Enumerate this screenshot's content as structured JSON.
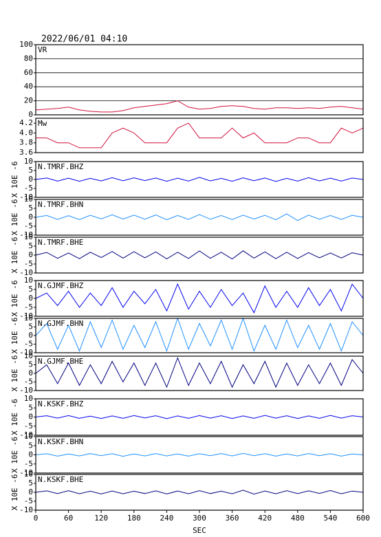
{
  "header": {
    "title": "2022/06/01 04:10"
  },
  "chart_data": [
    {
      "type": "line",
      "title": "VR",
      "xlim": [
        0,
        600
      ],
      "ylim": [
        0,
        100
      ],
      "yticks": [
        0,
        20,
        40,
        60,
        80,
        100
      ],
      "grid": true,
      "series": [
        {
          "color": "#d0103a",
          "x": [
            0,
            20,
            40,
            60,
            80,
            100,
            120,
            140,
            160,
            180,
            200,
            220,
            240,
            260,
            280,
            300,
            320,
            340,
            360,
            380,
            400,
            420,
            440,
            460,
            480,
            500,
            520,
            540,
            560,
            580,
            600
          ],
          "values": [
            7,
            8,
            9,
            11,
            7,
            5,
            4,
            4,
            6,
            10,
            12,
            14,
            16,
            20,
            11,
            8,
            9,
            12,
            13,
            12,
            9,
            8,
            10,
            10,
            9,
            10,
            9,
            11,
            12,
            10,
            8
          ]
        }
      ]
    },
    {
      "type": "line",
      "title": "Mw",
      "xlim": [
        0,
        600
      ],
      "ylim": [
        3.6,
        4.3
      ],
      "yticks": [
        3.6,
        3.8,
        {
          "value": 4,
          "label": "4.0"
        },
        4.2
      ],
      "grid": false,
      "series": [
        {
          "color": "#d0103a",
          "x": [
            0,
            20,
            40,
            60,
            80,
            100,
            120,
            140,
            160,
            180,
            200,
            220,
            240,
            260,
            280,
            300,
            320,
            340,
            360,
            380,
            400,
            420,
            440,
            460,
            480,
            500,
            520,
            540,
            560,
            580,
            600
          ],
          "values": [
            3.9,
            3.9,
            3.8,
            3.8,
            3.7,
            3.7,
            3.7,
            4.0,
            4.1,
            4.0,
            3.8,
            3.8,
            3.8,
            4.1,
            4.2,
            3.9,
            3.9,
            3.9,
            4.1,
            3.9,
            4.0,
            3.8,
            3.8,
            3.8,
            3.9,
            3.9,
            3.8,
            3.8,
            4.1,
            4.0,
            4.1
          ]
        }
      ]
    },
    {
      "type": "line",
      "title": "N.TMRF.BHZ",
      "ylabel": "X 10E -6",
      "xlim": [
        0,
        600
      ],
      "ylim": [
        -10,
        10
      ],
      "yticks": [
        -10,
        -5,
        0,
        5,
        10
      ],
      "grid": false,
      "series": [
        {
          "color": "#0000ee",
          "x": [
            0,
            20,
            40,
            60,
            80,
            100,
            120,
            140,
            160,
            180,
            200,
            220,
            240,
            260,
            280,
            300,
            320,
            340,
            360,
            380,
            400,
            420,
            440,
            460,
            480,
            500,
            520,
            540,
            560,
            580,
            600
          ],
          "values": [
            0,
            0.8,
            -0.9,
            0.7,
            -1,
            0.6,
            -0.8,
            1,
            -0.7,
            0.9,
            -0.6,
            0.8,
            -1,
            0.7,
            -0.9,
            1.2,
            -0.8,
            0.6,
            -1,
            0.9,
            -0.7,
            0.8,
            -1.1,
            0.6,
            -0.9,
            1,
            -0.8,
            0.7,
            -0.9,
            0.8,
            0
          ]
        }
      ]
    },
    {
      "type": "line",
      "title": "N.TMRF.BHN",
      "ylabel": "X 10E -6",
      "xlim": [
        0,
        600
      ],
      "ylim": [
        -10,
        10
      ],
      "yticks": [
        -10,
        -5,
        0,
        5,
        10
      ],
      "grid": false,
      "series": [
        {
          "color": "#1e90ff",
          "x": [
            0,
            20,
            40,
            60,
            80,
            100,
            120,
            140,
            160,
            180,
            200,
            220,
            240,
            260,
            280,
            300,
            320,
            340,
            360,
            380,
            400,
            420,
            440,
            460,
            480,
            500,
            520,
            540,
            560,
            580,
            600
          ],
          "values": [
            0,
            1,
            -1.2,
            0.9,
            -1.3,
            1.1,
            -0.9,
            1.4,
            -1,
            1.2,
            -1.1,
            1.3,
            -1.4,
            1,
            -1.2,
            1.5,
            -1.1,
            1,
            -1.3,
            1.2,
            -1,
            1.1,
            -1.4,
            1.9,
            -1.8,
            1.2,
            -1.1,
            1,
            -1.2,
            1.1,
            0
          ]
        }
      ]
    },
    {
      "type": "line",
      "title": "N.TMRF.BHE",
      "ylabel": "X 10E -6",
      "xlim": [
        0,
        600
      ],
      "ylim": [
        -10,
        10
      ],
      "yticks": [
        -10,
        -5,
        0,
        5,
        10
      ],
      "grid": false,
      "series": [
        {
          "color": "#000080",
          "x": [
            0,
            20,
            40,
            60,
            80,
            100,
            120,
            140,
            160,
            180,
            200,
            220,
            240,
            260,
            280,
            300,
            320,
            340,
            360,
            380,
            400,
            420,
            440,
            460,
            480,
            500,
            520,
            540,
            560,
            580,
            600
          ],
          "values": [
            0,
            1.5,
            -1.8,
            1.2,
            -2,
            1.6,
            -1.4,
            2,
            -1.7,
            1.9,
            -1.5,
            1.8,
            -2.1,
            1.6,
            -1.9,
            2.3,
            -1.8,
            1.6,
            -2.2,
            2.4,
            -1.7,
            1.8,
            -2,
            1.6,
            -1.9,
            1.4,
            -1.5,
            1.2,
            -1.6,
            1.3,
            0
          ]
        }
      ]
    },
    {
      "type": "line",
      "title": "N.GJMF.BHZ",
      "ylabel": "X 10E -6",
      "xlim": [
        0,
        600
      ],
      "ylim": [
        -10,
        10
      ],
      "yticks": [
        -10,
        -5,
        0,
        5,
        10
      ],
      "grid": false,
      "series": [
        {
          "color": "#0000ee",
          "x": [
            0,
            20,
            40,
            60,
            80,
            100,
            120,
            140,
            160,
            180,
            200,
            220,
            240,
            260,
            280,
            300,
            320,
            340,
            360,
            380,
            400,
            420,
            440,
            460,
            480,
            500,
            520,
            540,
            560,
            580,
            600
          ],
          "values": [
            0,
            3,
            -4,
            4,
            -5,
            3,
            -4,
            6,
            -5,
            4,
            -3,
            5,
            -7,
            8,
            -6,
            4,
            -5,
            5,
            -4,
            3,
            -8,
            7,
            -5,
            4,
            -5,
            6,
            -4,
            5,
            -7,
            8,
            0
          ]
        }
      ]
    },
    {
      "type": "line",
      "title": "N.GJMF.BHN",
      "ylabel": "X 10E -6",
      "xlim": [
        0,
        600
      ],
      "ylim": [
        -10,
        10
      ],
      "yticks": [
        -10,
        -5,
        0,
        5,
        10
      ],
      "grid": false,
      "series": [
        {
          "color": "#1e90ff",
          "x": [
            0,
            20,
            40,
            60,
            80,
            100,
            120,
            140,
            160,
            180,
            200,
            220,
            240,
            260,
            280,
            300,
            320,
            340,
            360,
            380,
            400,
            420,
            440,
            460,
            480,
            500,
            520,
            540,
            560,
            580,
            600
          ],
          "values": [
            0,
            7,
            -8,
            6,
            -9,
            8,
            -7,
            9,
            -8,
            6,
            -7,
            8,
            -9,
            10,
            -8,
            7,
            -6,
            9,
            -8,
            10,
            -9,
            6,
            -8,
            9,
            -7,
            6,
            -8,
            7,
            -9,
            8,
            0
          ]
        }
      ]
    },
    {
      "type": "line",
      "title": "N.GJMF.BHE",
      "ylabel": "X 10E -6",
      "xlim": [
        0,
        600
      ],
      "ylim": [
        -10,
        10
      ],
      "yticks": [
        -10,
        -5,
        0,
        5,
        10
      ],
      "grid": false,
      "series": [
        {
          "color": "#000080",
          "x": [
            0,
            20,
            40,
            60,
            80,
            100,
            120,
            140,
            160,
            180,
            200,
            220,
            240,
            260,
            280,
            300,
            320,
            340,
            360,
            380,
            400,
            420,
            440,
            460,
            480,
            500,
            520,
            540,
            560,
            580,
            600
          ],
          "values": [
            0,
            5,
            -6,
            6,
            -7,
            5,
            -6,
            7,
            -5,
            6,
            -7,
            6,
            -8,
            9,
            -7,
            6,
            -6,
            7,
            -8,
            5,
            -6,
            7,
            -8,
            6,
            -7,
            5,
            -6,
            6,
            -7,
            8,
            0
          ]
        }
      ]
    },
    {
      "type": "line",
      "title": "N.KSKF.BHZ",
      "ylabel": "X 10E -6",
      "xlim": [
        0,
        600
      ],
      "ylim": [
        -10,
        10
      ],
      "yticks": [
        -10,
        -5,
        0,
        5,
        10
      ],
      "grid": false,
      "series": [
        {
          "color": "#0000ee",
          "x": [
            0,
            20,
            40,
            60,
            80,
            100,
            120,
            140,
            160,
            180,
            200,
            220,
            240,
            260,
            280,
            300,
            320,
            340,
            360,
            380,
            400,
            420,
            440,
            460,
            480,
            500,
            520,
            540,
            560,
            580,
            600
          ],
          "values": [
            0,
            0.7,
            -0.6,
            0.8,
            -0.7,
            0.5,
            -0.8,
            0.6,
            -0.7,
            0.8,
            -0.5,
            0.7,
            -0.9,
            0.6,
            -0.7,
            0.8,
            -0.6,
            0.7,
            -0.8,
            0.6,
            -0.7,
            0.9,
            -0.6,
            0.7,
            -0.8,
            0.6,
            -0.7,
            0.9,
            -0.6,
            0.7,
            0
          ]
        }
      ]
    },
    {
      "type": "line",
      "title": "N.KSKF.BHN",
      "ylabel": "X 10E -6",
      "xlim": [
        0,
        600
      ],
      "ylim": [
        -10,
        10
      ],
      "yticks": [
        -10,
        -5,
        0,
        5,
        10
      ],
      "grid": false,
      "series": [
        {
          "color": "#1e90ff",
          "x": [
            0,
            20,
            40,
            60,
            80,
            100,
            120,
            140,
            160,
            180,
            200,
            220,
            240,
            260,
            280,
            300,
            320,
            340,
            360,
            380,
            400,
            420,
            440,
            460,
            480,
            500,
            520,
            540,
            560,
            580,
            600
          ],
          "values": [
            0,
            0.6,
            -0.7,
            0.5,
            -0.6,
            0.7,
            -0.5,
            0.6,
            -0.8,
            0.5,
            -0.6,
            0.7,
            -0.6,
            0.5,
            -0.7,
            0.6,
            -0.5,
            0.7,
            -0.6,
            0.8,
            -0.5,
            0.6,
            -0.7,
            0.5,
            -0.6,
            0.7,
            -0.5,
            0.6,
            -0.7,
            0.5,
            0
          ]
        }
      ]
    },
    {
      "type": "line",
      "title": "N.KSKF.BHE",
      "ylabel": "X 10E -6",
      "xlabel": "SEC",
      "xlim": [
        0,
        600
      ],
      "ylim": [
        -10,
        10
      ],
      "yticks": [
        -10,
        -5,
        0,
        5,
        10
      ],
      "xticks": [
        0,
        60,
        120,
        180,
        240,
        300,
        360,
        420,
        480,
        540,
        600
      ],
      "grid": false,
      "series": [
        {
          "color": "#000080",
          "x": [
            0,
            20,
            40,
            60,
            80,
            100,
            120,
            140,
            160,
            180,
            200,
            220,
            240,
            260,
            280,
            300,
            320,
            340,
            360,
            380,
            400,
            420,
            440,
            460,
            480,
            500,
            520,
            540,
            560,
            580,
            600
          ],
          "values": [
            0,
            0.8,
            -0.7,
            0.9,
            -0.8,
            0.6,
            -0.9,
            0.7,
            -0.8,
            0.6,
            -0.7,
            0.8,
            -0.9,
            0.7,
            -0.8,
            0.9,
            -0.7,
            0.6,
            -0.8,
            1.2,
            -1,
            0.7,
            -0.8,
            0.9,
            -0.7,
            0.8,
            -0.6,
            1,
            -0.8,
            0.7,
            0
          ]
        }
      ]
    }
  ]
}
